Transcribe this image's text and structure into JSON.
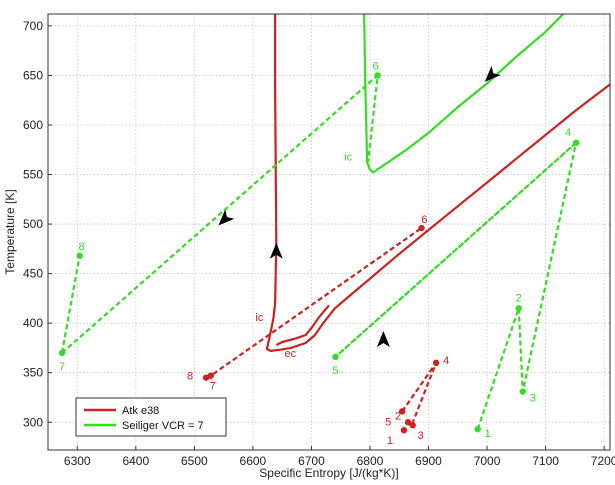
{
  "chart_data": {
    "type": "line",
    "xlabel": "Specific Entropy [J/(kg*K)]",
    "ylabel": "Temperature [K]",
    "xlim": [
      6250,
      7210
    ],
    "ylim": [
      272,
      712
    ],
    "xticks": [
      "6300",
      "6400",
      "6500",
      "6600",
      "6700",
      "6800",
      "6900",
      "7000",
      "7100",
      "7200"
    ],
    "yticks": [
      "300",
      "350",
      "400",
      "450",
      "500",
      "550",
      "600",
      "650",
      "700"
    ],
    "grid": true,
    "legend_position": "bottom-left",
    "colors": {
      "red": "#cc2222",
      "green": "#33dd22",
      "arrow": "#000000"
    },
    "series": [
      {
        "name": "Atk e38",
        "color": "#cc2222",
        "solid_paths": [
          [
            [
              6638,
              712
            ],
            [
              6638,
              640
            ],
            [
              6639,
              560
            ],
            [
              6640,
              480
            ],
            [
              6638,
              420
            ],
            [
              6635,
              405
            ],
            [
              6631,
              393
            ],
            [
              6627,
              382
            ],
            [
              6624,
              374
            ],
            [
              6630,
              372
            ],
            [
              6645,
              373
            ],
            [
              6665,
              375
            ],
            [
              6690,
              380
            ],
            [
              6706,
              388
            ],
            [
              6720,
              400
            ],
            [
              6740,
              415
            ],
            [
              6760,
              425
            ],
            [
              6800,
              445
            ],
            [
              6850,
              470
            ],
            [
              6900,
              494
            ],
            [
              6950,
              518
            ],
            [
              7000,
              542
            ],
            [
              7050,
              566
            ],
            [
              7100,
              590
            ],
            [
              7150,
              614
            ],
            [
              7210,
              641
            ]
          ],
          [
            [
              6640,
              378
            ],
            [
              6650,
              381
            ],
            [
              6670,
              384
            ],
            [
              6690,
              388
            ],
            [
              6700,
              395
            ],
            [
              6713,
              406
            ],
            [
              6730,
              418
            ]
          ]
        ],
        "dashed_paths": [
          [
            [
              6520,
              345
            ],
            [
              6528,
              347
            ],
            [
              6888,
              496
            ]
          ],
          [
            [
              6855,
              311
            ],
            [
              6913,
              360
            ],
            [
              6872,
              298
            ]
          ]
        ],
        "points": [
          {
            "label": "1",
            "x": 6858,
            "y": 292
          },
          {
            "label": "2",
            "x": 6865,
            "y": 300
          },
          {
            "label": "3",
            "x": 6873,
            "y": 297
          },
          {
            "label": "4",
            "x": 6913,
            "y": 360
          },
          {
            "label": "5",
            "x": 6855,
            "y": 311
          },
          {
            "label": "6",
            "x": 6888,
            "y": 496
          },
          {
            "label": "7",
            "x": 6528,
            "y": 347
          },
          {
            "label": "8",
            "x": 6520,
            "y": 345
          }
        ],
        "annotations": [
          {
            "text": "ic",
            "x": 6635,
            "y": 400
          },
          {
            "text": "ec",
            "x": 6640,
            "y": 378
          }
        ]
      },
      {
        "name": "Seiliger VCR = 7",
        "color": "#33dd22",
        "solid_paths": [
          [
            [
              6790,
              712
            ],
            [
              6792,
              640
            ],
            [
              6794,
              590
            ],
            [
              6795,
              563
            ],
            [
              6799,
              556
            ],
            [
              6805,
              552
            ],
            [
              6830,
              562
            ],
            [
              6860,
              574
            ],
            [
              6900,
              592
            ],
            [
              6950,
              618
            ],
            [
              7000,
              642
            ],
            [
              7050,
              669
            ],
            [
              7100,
              694
            ],
            [
              7130,
              712
            ]
          ]
        ],
        "dashed_paths": [
          [
            [
              6984,
              293
            ],
            [
              7054,
              415
            ],
            [
              7061,
              331
            ],
            [
              7152,
              582
            ],
            [
              6741,
              366
            ],
            [
              7152,
              582
            ]
          ],
          [
            [
              6274,
              370
            ],
            [
              6304,
              468
            ]
          ],
          [
            [
              6274,
              370
            ],
            [
              6813,
              650
            ],
            [
              6797,
              563
            ]
          ]
        ],
        "points": [
          {
            "label": "1",
            "x": 6984,
            "y": 293
          },
          {
            "label": "2",
            "x": 7054,
            "y": 415
          },
          {
            "label": "3",
            "x": 7061,
            "y": 331
          },
          {
            "label": "4",
            "x": 7152,
            "y": 582
          },
          {
            "label": "5",
            "x": 6741,
            "y": 366
          },
          {
            "label": "6",
            "x": 6813,
            "y": 650
          },
          {
            "label": "7",
            "x": 6274,
            "y": 370
          },
          {
            "label": "8",
            "x": 6304,
            "y": 468
          }
        ],
        "annotations": [
          {
            "text": "ic",
            "x": 6797,
            "y": 563
          }
        ]
      }
    ],
    "arrows": [
      {
        "x": 6640,
        "y": 472,
        "dir": "up"
      },
      {
        "x": 6823,
        "y": 383,
        "dir": "up"
      },
      {
        "x": 6552,
        "y": 505,
        "dir": "down-left"
      },
      {
        "x": 7007,
        "y": 650,
        "dir": "down-left"
      }
    ]
  }
}
